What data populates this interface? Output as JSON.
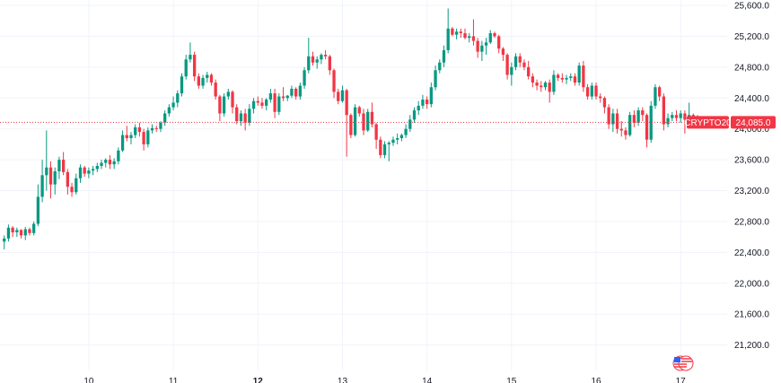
{
  "colors": {
    "up": "#089981",
    "down": "#f23645",
    "grid": "#f0f3fa",
    "axis_text": "#131722",
    "last_price": "#f23645"
  },
  "symbol_label": "CRYPTO20",
  "last_price_label": "24,085.0",
  "chart_data": {
    "type": "candlestick",
    "title": "",
    "last_price": 24085.0,
    "y_ticks": [
      {
        "value": 25600,
        "label": "25,600.0"
      },
      {
        "value": 25200,
        "label": "25,200.0"
      },
      {
        "value": 24800,
        "label": "24,800.0"
      },
      {
        "value": 24400,
        "label": "24,400.0"
      },
      {
        "value": 24000,
        "label": "24,000.0"
      },
      {
        "value": 23600,
        "label": "23,600.0"
      },
      {
        "value": 23200,
        "label": "23,200.0"
      },
      {
        "value": 22800,
        "label": "22,800.0"
      },
      {
        "value": 22400,
        "label": "22,400.0"
      },
      {
        "value": 22000,
        "label": "22,000.0"
      },
      {
        "value": 21600,
        "label": "21,600.0"
      },
      {
        "value": 21200,
        "label": "21,200.0"
      }
    ],
    "ylim": [
      20870,
      25670
    ],
    "x_ticks": [
      {
        "index": 20,
        "label": "10",
        "bold": false
      },
      {
        "index": 40,
        "label": "11",
        "bold": false
      },
      {
        "index": 60,
        "label": "12",
        "bold": true
      },
      {
        "index": 80,
        "label": "13",
        "bold": false
      },
      {
        "index": 100,
        "label": "14",
        "bold": false
      },
      {
        "index": 120,
        "label": "15",
        "bold": false
      },
      {
        "index": 140,
        "label": "16",
        "bold": false
      },
      {
        "index": 160,
        "label": "17",
        "bold": false
      }
    ],
    "xlim": [
      -1,
      171
    ],
    "candles": [
      [
        22540,
        22620,
        22440,
        22580
      ],
      [
        22580,
        22760,
        22540,
        22720
      ],
      [
        22720,
        22740,
        22600,
        22660
      ],
      [
        22660,
        22720,
        22600,
        22690
      ],
      [
        22690,
        22700,
        22580,
        22620
      ],
      [
        22620,
        22730,
        22560,
        22700
      ],
      [
        22700,
        22720,
        22620,
        22650
      ],
      [
        22650,
        22800,
        22620,
        22770
      ],
      [
        22770,
        23280,
        22740,
        23120
      ],
      [
        23120,
        23600,
        23050,
        23400
      ],
      [
        23400,
        23980,
        23200,
        23500
      ],
      [
        23500,
        23580,
        23100,
        23280
      ],
      [
        23280,
        23500,
        23150,
        23450
      ],
      [
        23450,
        23640,
        23350,
        23600
      ],
      [
        23600,
        23700,
        23400,
        23440
      ],
      [
        23440,
        23480,
        23150,
        23250
      ],
      [
        23250,
        23300,
        23120,
        23180
      ],
      [
        23180,
        23420,
        23150,
        23360
      ],
      [
        23360,
        23540,
        23300,
        23500
      ],
      [
        23500,
        23520,
        23380,
        23420
      ],
      [
        23420,
        23500,
        23360,
        23460
      ],
      [
        23460,
        23520,
        23400,
        23480
      ],
      [
        23480,
        23560,
        23440,
        23520
      ],
      [
        23520,
        23600,
        23480,
        23560
      ],
      [
        23560,
        23620,
        23500,
        23600
      ],
      [
        23600,
        23660,
        23480,
        23540
      ],
      [
        23540,
        23620,
        23480,
        23580
      ],
      [
        23580,
        23760,
        23540,
        23720
      ],
      [
        23720,
        23980,
        23700,
        23920
      ],
      [
        23920,
        24040,
        23840,
        23880
      ],
      [
        23880,
        23960,
        23800,
        23920
      ],
      [
        23920,
        24060,
        23880,
        24020
      ],
      [
        24020,
        24080,
        23900,
        23960
      ],
      [
        23960,
        24000,
        23720,
        23800
      ],
      [
        23800,
        24020,
        23760,
        23980
      ],
      [
        23980,
        24060,
        23940,
        24010
      ],
      [
        24010,
        24040,
        23960,
        24000
      ],
      [
        24000,
        24100,
        23960,
        24080
      ],
      [
        24080,
        24240,
        24040,
        24200
      ],
      [
        24200,
        24320,
        24160,
        24280
      ],
      [
        24280,
        24420,
        24240,
        24340
      ],
      [
        24340,
        24500,
        24280,
        24460
      ],
      [
        24460,
        24720,
        24420,
        24680
      ],
      [
        24680,
        24960,
        24640,
        24900
      ],
      [
        24900,
        25120,
        24860,
        24960
      ],
      [
        24960,
        25000,
        24620,
        24680
      ],
      [
        24680,
        24720,
        24520,
        24560
      ],
      [
        24560,
        24700,
        24520,
        24660
      ],
      [
        24660,
        24740,
        24600,
        24700
      ],
      [
        24700,
        24720,
        24560,
        24600
      ],
      [
        24600,
        24640,
        24380,
        24420
      ],
      [
        24420,
        24440,
        24100,
        24200
      ],
      [
        24200,
        24460,
        24160,
        24420
      ],
      [
        24420,
        24520,
        24380,
        24480
      ],
      [
        24480,
        24500,
        24200,
        24280
      ],
      [
        24280,
        24320,
        24060,
        24100
      ],
      [
        24100,
        24240,
        24040,
        24200
      ],
      [
        24200,
        24260,
        23980,
        24080
      ],
      [
        24080,
        24320,
        24040,
        24260
      ],
      [
        24260,
        24400,
        24200,
        24360
      ],
      [
        24360,
        24420,
        24300,
        24340
      ],
      [
        24340,
        24400,
        24260,
        24300
      ],
      [
        24300,
        24400,
        24240,
        24380
      ],
      [
        24380,
        24520,
        24340,
        24460
      ],
      [
        24460,
        24520,
        24140,
        24220
      ],
      [
        24220,
        24460,
        24180,
        24420
      ],
      [
        24420,
        24540,
        24360,
        24400
      ],
      [
        24400,
        24440,
        24360,
        24430
      ],
      [
        24430,
        24560,
        24400,
        24520
      ],
      [
        24520,
        24540,
        24380,
        24420
      ],
      [
        24420,
        24600,
        24380,
        24560
      ],
      [
        24560,
        24800,
        24520,
        24760
      ],
      [
        24760,
        25180,
        24720,
        24940
      ],
      [
        24940,
        25000,
        24820,
        24860
      ],
      [
        24860,
        24940,
        24780,
        24900
      ],
      [
        24900,
        24980,
        24840,
        24960
      ],
      [
        24960,
        25020,
        24900,
        24940
      ],
      [
        24940,
        24960,
        24700,
        24760
      ],
      [
        24760,
        24780,
        24400,
        24480
      ],
      [
        24480,
        24520,
        24320,
        24360
      ],
      [
        24360,
        24560,
        24340,
        24500
      ],
      [
        24500,
        24520,
        23640,
        24180
      ],
      [
        24180,
        24200,
        23880,
        23920
      ],
      [
        23920,
        24320,
        23900,
        24280
      ],
      [
        24280,
        24300,
        24160,
        24200
      ],
      [
        24200,
        24260,
        23920,
        23980
      ],
      [
        23980,
        24260,
        23960,
        24220
      ],
      [
        24220,
        24340,
        24020,
        24060
      ],
      [
        24060,
        24080,
        23740,
        23860
      ],
      [
        23860,
        23900,
        23620,
        23660
      ],
      [
        23660,
        23840,
        23620,
        23800
      ],
      [
        23800,
        23840,
        23580,
        23820
      ],
      [
        23820,
        23900,
        23780,
        23860
      ],
      [
        23860,
        23940,
        23800,
        23880
      ],
      [
        23880,
        23940,
        23840,
        23920
      ],
      [
        23920,
        24060,
        23880,
        24000
      ],
      [
        24000,
        24180,
        23960,
        24120
      ],
      [
        24120,
        24280,
        24080,
        24240
      ],
      [
        24240,
        24360,
        24180,
        24300
      ],
      [
        24300,
        24440,
        24260,
        24380
      ],
      [
        24380,
        24420,
        24260,
        24320
      ],
      [
        24320,
        24600,
        24280,
        24540
      ],
      [
        24540,
        24820,
        24500,
        24760
      ],
      [
        24760,
        24900,
        24720,
        24860
      ],
      [
        24860,
        25080,
        24800,
        25020
      ],
      [
        25020,
        25560,
        24980,
        25300
      ],
      [
        25300,
        25320,
        25200,
        25220
      ],
      [
        25220,
        25300,
        25160,
        25260
      ],
      [
        25260,
        25300,
        25180,
        25240
      ],
      [
        25240,
        25300,
        25160,
        25180
      ],
      [
        25180,
        25240,
        25120,
        25200
      ],
      [
        25200,
        25420,
        25080,
        25140
      ],
      [
        25140,
        25180,
        24920,
        25000
      ],
      [
        25000,
        25140,
        24880,
        25080
      ],
      [
        25080,
        25180,
        24960,
        25120
      ],
      [
        25120,
        25280,
        25100,
        25240
      ],
      [
        25240,
        25260,
        25180,
        25200
      ],
      [
        25200,
        25220,
        24980,
        25040
      ],
      [
        25040,
        25060,
        24880,
        24960
      ],
      [
        24960,
        24980,
        24640,
        24700
      ],
      [
        24700,
        24860,
        24560,
        24800
      ],
      [
        24800,
        24980,
        24760,
        24940
      ],
      [
        24940,
        24980,
        24800,
        24860
      ],
      [
        24860,
        24900,
        24760,
        24800
      ],
      [
        24800,
        24880,
        24640,
        24680
      ],
      [
        24680,
        24720,
        24540,
        24600
      ],
      [
        24600,
        24640,
        24500,
        24560
      ],
      [
        24560,
        24620,
        24480,
        24540
      ],
      [
        24540,
        24620,
        24500,
        24600
      ],
      [
        24600,
        24640,
        24340,
        24480
      ],
      [
        24480,
        24760,
        24440,
        24700
      ],
      [
        24700,
        24720,
        24620,
        24660
      ],
      [
        24660,
        24720,
        24600,
        24640
      ],
      [
        24640,
        24700,
        24580,
        24660
      ],
      [
        24660,
        24720,
        24620,
        24680
      ],
      [
        24680,
        24720,
        24560,
        24600
      ],
      [
        24600,
        24860,
        24560,
        24820
      ],
      [
        24820,
        24880,
        24480,
        24540
      ],
      [
        24540,
        24580,
        24380,
        24420
      ],
      [
        24420,
        24600,
        24380,
        24560
      ],
      [
        24560,
        24600,
        24380,
        24420
      ],
      [
        24420,
        24460,
        24340,
        24400
      ],
      [
        24400,
        24420,
        24200,
        24280
      ],
      [
        24280,
        24320,
        24000,
        24060
      ],
      [
        24060,
        24260,
        23960,
        24200
      ],
      [
        24200,
        24260,
        23940,
        24000
      ],
      [
        24000,
        24100,
        23900,
        23980
      ],
      [
        23980,
        24020,
        23860,
        23920
      ],
      [
        23920,
        24220,
        23900,
        24180
      ],
      [
        24180,
        24240,
        24020,
        24080
      ],
      [
        24080,
        24280,
        24040,
        24240
      ],
      [
        24240,
        24280,
        24100,
        24180
      ],
      [
        24180,
        24200,
        23760,
        23860
      ],
      [
        23860,
        24360,
        23820,
        24300
      ],
      [
        24300,
        24580,
        24260,
        24540
      ],
      [
        24540,
        24560,
        24360,
        24420
      ],
      [
        24420,
        24460,
        23980,
        24060
      ],
      [
        24060,
        24200,
        24020,
        24140
      ],
      [
        24140,
        24220,
        24100,
        24180
      ],
      [
        24180,
        24240,
        24100,
        24140
      ],
      [
        24140,
        24240,
        24080,
        24200
      ],
      [
        24200,
        24240,
        23940,
        24120
      ],
      [
        24120,
        24340,
        24080,
        24180
      ],
      [
        24180,
        24200,
        24060,
        24100
      ],
      [
        24100,
        24180,
        24060,
        24085
      ]
    ]
  }
}
